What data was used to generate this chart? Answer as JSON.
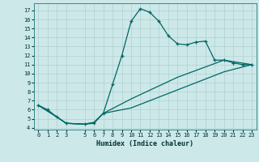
{
  "xlabel": "Humidex (Indice chaleur)",
  "bg_color": "#cde8e8",
  "grid_color": "#b0d0d0",
  "line_color": "#006666",
  "xlim": [
    -0.5,
    23.5
  ],
  "ylim": [
    3.8,
    17.8
  ],
  "xticks": [
    0,
    1,
    2,
    3,
    5,
    6,
    7,
    8,
    9,
    10,
    11,
    12,
    13,
    14,
    15,
    16,
    17,
    18,
    19,
    20,
    21,
    22,
    23
  ],
  "yticks": [
    4,
    5,
    6,
    7,
    8,
    9,
    10,
    11,
    12,
    13,
    14,
    15,
    16,
    17
  ],
  "line1_x": [
    0,
    1,
    2,
    3,
    5,
    6,
    7,
    8,
    9,
    10,
    11,
    12,
    13,
    14,
    15,
    16,
    17,
    18,
    19,
    20,
    21,
    22,
    23
  ],
  "line1_y": [
    6.5,
    6.0,
    5.2,
    4.5,
    4.4,
    4.5,
    5.6,
    8.8,
    12.0,
    15.8,
    17.2,
    16.8,
    15.8,
    14.2,
    13.3,
    13.2,
    13.5,
    13.6,
    11.5,
    11.5,
    11.2,
    11.0,
    11.0
  ],
  "line2_x": [
    0,
    2,
    3,
    5,
    6,
    7,
    10,
    15,
    20,
    23
  ],
  "line2_y": [
    6.5,
    5.2,
    4.5,
    4.4,
    4.6,
    5.6,
    7.2,
    9.6,
    11.5,
    11.0
  ],
  "line3_x": [
    0,
    2,
    3,
    5,
    6,
    7,
    10,
    15,
    20,
    23
  ],
  "line3_y": [
    6.5,
    5.2,
    4.5,
    4.4,
    4.6,
    5.6,
    6.2,
    8.2,
    10.2,
    11.0
  ]
}
